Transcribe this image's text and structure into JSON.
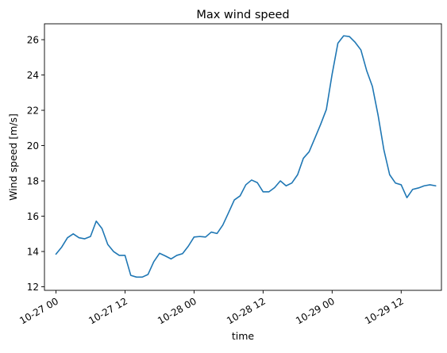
{
  "chart_data": {
    "type": "line",
    "title": "Max wind speed",
    "xlabel": "time",
    "ylabel": "Wind speed [m/s]",
    "x_ticks": [
      "10-27 00",
      "10-27 12",
      "10-28 00",
      "10-28 12",
      "10-29 00",
      "10-29 12"
    ],
    "y_ticks": [
      12,
      14,
      16,
      18,
      20,
      22,
      24,
      26
    ],
    "xlim": [
      "10-26 22",
      "10-29 19"
    ],
    "ylim": [
      11.8,
      26.9
    ],
    "grid": false,
    "series": [
      {
        "name": "",
        "color": "#1f77b4",
        "x": [
          "10-27 00",
          "10-27 01",
          "10-27 02",
          "10-27 03",
          "10-27 04",
          "10-27 05",
          "10-27 06",
          "10-27 07",
          "10-27 08",
          "10-27 09",
          "10-27 10",
          "10-27 11",
          "10-27 12",
          "10-27 13",
          "10-27 14",
          "10-27 15",
          "10-27 16",
          "10-27 17",
          "10-27 18",
          "10-27 19",
          "10-27 20",
          "10-27 21",
          "10-27 22",
          "10-27 23",
          "10-28 00",
          "10-28 01",
          "10-28 02",
          "10-28 03",
          "10-28 04",
          "10-28 05",
          "10-28 06",
          "10-28 07",
          "10-28 08",
          "10-28 09",
          "10-28 10",
          "10-28 11",
          "10-28 12",
          "10-28 13",
          "10-28 14",
          "10-28 15",
          "10-28 16",
          "10-28 17",
          "10-28 18",
          "10-28 19",
          "10-28 20",
          "10-28 21",
          "10-28 22",
          "10-28 23",
          "10-29 00",
          "10-29 01",
          "10-29 02",
          "10-29 03",
          "10-29 04",
          "10-29 05",
          "10-29 06",
          "10-29 07",
          "10-29 08",
          "10-29 09",
          "10-29 10",
          "10-29 11",
          "10-29 12",
          "10-29 13",
          "10-29 14",
          "10-29 15",
          "10-29 16",
          "10-29 17",
          "10-29 18"
        ],
        "values": [
          13.85,
          14.25,
          14.78,
          15.0,
          14.78,
          14.72,
          14.85,
          15.72,
          15.3,
          14.4,
          14.0,
          13.78,
          13.78,
          12.65,
          12.55,
          12.55,
          12.7,
          13.42,
          13.9,
          13.75,
          13.58,
          13.78,
          13.88,
          14.3,
          14.82,
          14.85,
          14.82,
          15.1,
          15.02,
          15.5,
          16.2,
          16.92,
          17.15,
          17.78,
          18.05,
          17.9,
          17.38,
          17.38,
          17.62,
          18.0,
          17.72,
          17.88,
          18.35,
          19.28,
          19.65,
          20.42,
          21.2,
          22.05,
          24.05,
          25.8,
          26.22,
          26.18,
          25.85,
          25.42,
          24.25,
          23.35,
          21.7,
          19.75,
          18.35,
          17.88,
          17.78,
          17.05,
          17.52,
          17.6,
          17.72,
          17.78,
          17.72
        ]
      }
    ]
  }
}
